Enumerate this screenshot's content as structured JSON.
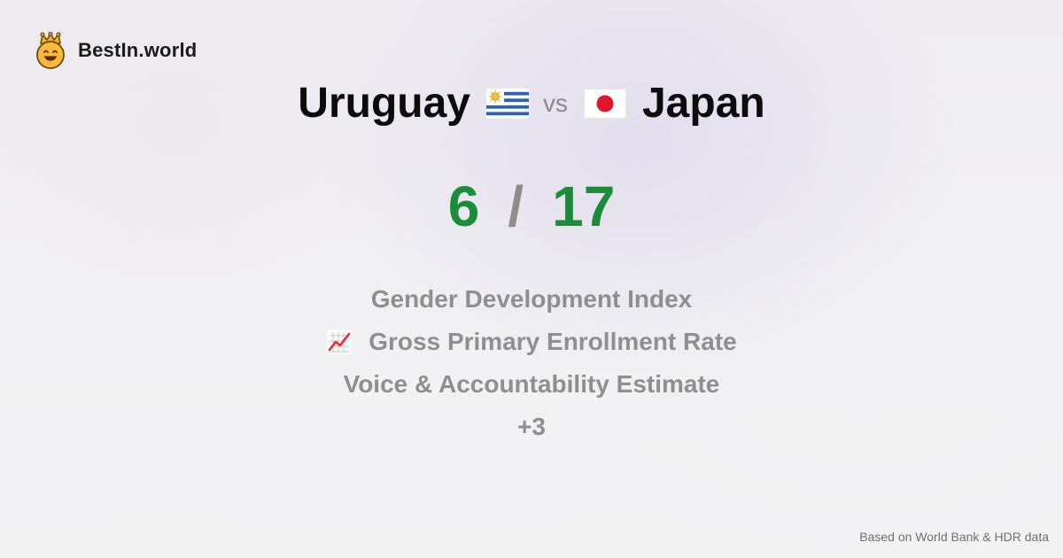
{
  "brand": {
    "name": "BestIn.world",
    "logo_icon": "crowned-smiley-icon"
  },
  "matchup": {
    "left_country": "Uruguay",
    "left_flag": "uruguay-flag-icon",
    "vs_label": "vs",
    "right_flag": "japan-flag-icon",
    "right_country": "Japan"
  },
  "score": {
    "left": "6",
    "separator": "/",
    "right": "17"
  },
  "metrics": [
    {
      "label": "Gender Development Index"
    },
    {
      "label": "Gross Primary Enrollment Rate",
      "icon": "chart-increasing-icon"
    },
    {
      "label": "Voice & Accountability Estimate"
    }
  ],
  "more_label": "+3",
  "footer": {
    "source": "Based on World Bank & HDR data"
  },
  "colors": {
    "score": "#1a8c3a",
    "muted_text": "#8f8f8f",
    "title_text": "#0c0c0c"
  }
}
